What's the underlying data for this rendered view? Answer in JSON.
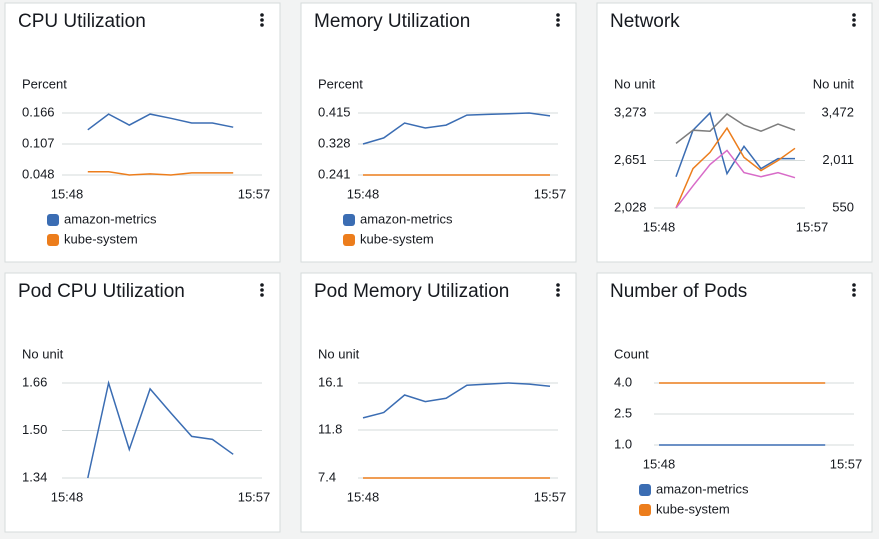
{
  "chart_data": [
    {
      "type": "line",
      "title": "CPU Utilization",
      "ylabel": "Percent",
      "categories": [
        "15:48",
        null,
        null,
        null,
        null,
        null,
        null,
        null,
        null,
        "15:57"
      ],
      "series": [
        {
          "name": "amazon-metrics",
          "color": "#3b6db3",
          "values": [
            null,
            0.134,
            0.164,
            0.143,
            0.164,
            0.156,
            0.147,
            0.147,
            0.139,
            null
          ]
        },
        {
          "name": "kube-system",
          "color": "#ec7d1c",
          "values": [
            null,
            0.054,
            0.054,
            0.048,
            0.05,
            0.048,
            0.052,
            0.052,
            0.052,
            null
          ]
        }
      ],
      "ylim": [
        0.048,
        0.166
      ],
      "yticks": [
        0.048,
        0.107,
        0.166
      ],
      "grid": true,
      "legend": true
    },
    {
      "type": "line",
      "title": "Memory Utilization",
      "ylabel": "Percent",
      "categories": [
        "15:48",
        null,
        null,
        null,
        null,
        null,
        null,
        null,
        null,
        "15:57"
      ],
      "series": [
        {
          "name": "amazon-metrics",
          "color": "#3b6db3",
          "values": [
            0.328,
            0.345,
            0.387,
            0.373,
            0.381,
            0.409,
            0.411,
            0.413,
            0.415,
            0.407
          ]
        },
        {
          "name": "kube-system",
          "color": "#ec7d1c",
          "values": [
            0.241,
            0.241,
            0.241,
            0.241,
            0.241,
            0.241,
            0.241,
            0.241,
            0.241,
            0.241
          ]
        }
      ],
      "ylim": [
        0.241,
        0.415
      ],
      "yticks": [
        0.241,
        0.328,
        0.415
      ],
      "grid": true,
      "legend": true
    },
    {
      "type": "line",
      "title": "Network",
      "ylabel": "No unit",
      "y2label": "No unit",
      "categories": [
        "15:48",
        null,
        null,
        null,
        null,
        null,
        null,
        null,
        null,
        "15:57"
      ],
      "series": [
        {
          "color": "#3b6db3",
          "values": [
            null,
            2438,
            3047,
            3273,
            2478,
            2836,
            2544,
            2676,
            2676,
            null
          ]
        },
        {
          "color": "#7d7d7d",
          "values": [
            null,
            2875,
            3047,
            3034,
            3260,
            3114,
            3034,
            3127,
            3047,
            null
          ]
        },
        {
          "color": "#ec7d1c",
          "axis": "y2",
          "values": [
            null,
            550,
            1763,
            2261,
            3007,
            2105,
            1701,
            2012,
            2385,
            null
          ]
        },
        {
          "color": "#d86bc8",
          "axis": "y2",
          "values": [
            null,
            550,
            1234,
            1887,
            2323,
            1639,
            1514,
            1639,
            1483,
            null
          ]
        }
      ],
      "ylim": [
        2028,
        3273
      ],
      "yticks": [
        {
          "value": 2028,
          "label": "2,028"
        },
        {
          "value": 2651,
          "label": "2,651"
        },
        {
          "value": 3273,
          "label": "3,273"
        }
      ],
      "y2lim": [
        550,
        3472
      ],
      "y2ticks": [
        550,
        {
          "value": 2011,
          "label": "2,011"
        },
        {
          "value": 3472,
          "label": "3,472"
        }
      ],
      "grid": true,
      "legend": false
    },
    {
      "type": "line",
      "title": "Pod CPU Utilization",
      "ylabel": "No unit",
      "categories": [
        "15:48",
        null,
        null,
        null,
        null,
        null,
        null,
        null,
        null,
        "15:57"
      ],
      "color": "#3b6db3",
      "values": [
        null,
        1.34,
        1.66,
        1.436,
        1.64,
        1.559,
        1.48,
        1.47,
        1.42,
        null
      ],
      "ylim": [
        1.34,
        1.66
      ],
      "yticks": [
        1.34,
        {
          "value": 1.5,
          "label": "1.50"
        },
        1.66
      ],
      "grid": true,
      "legend": false
    },
    {
      "type": "line",
      "title": "Pod Memory Utilization",
      "ylabel": "No unit",
      "categories": [
        "15:48",
        null,
        null,
        null,
        null,
        null,
        null,
        null,
        null,
        "15:57"
      ],
      "series": [
        {
          "color": "#3b6db3",
          "values": [
            12.9,
            13.4,
            15.0,
            14.4,
            14.7,
            15.9,
            16.0,
            16.1,
            16.0,
            15.8
          ]
        },
        {
          "color": "#ec7d1c",
          "values": [
            7.4,
            7.4,
            7.4,
            7.4,
            7.4,
            7.4,
            7.4,
            7.4,
            7.4,
            7.4
          ]
        }
      ],
      "ylim": [
        7.4,
        16.1
      ],
      "yticks": [
        7.4,
        11.8,
        16.1
      ],
      "grid": true,
      "legend": false
    },
    {
      "type": "line",
      "title": "Number of Pods",
      "ylabel": "Count",
      "categories": [
        "15:48",
        null,
        null,
        null,
        null,
        null,
        null,
        null,
        null,
        "15:57"
      ],
      "series": [
        {
          "name": "amazon-metrics",
          "color": "#3b6db3",
          "values": [
            1,
            1,
            1,
            1,
            1,
            1,
            1,
            1,
            1,
            null
          ]
        },
        {
          "name": "kube-system",
          "color": "#ec7d1c",
          "values": [
            4,
            4,
            4,
            4,
            4,
            4,
            4,
            4,
            4,
            null
          ]
        }
      ],
      "ylim": [
        1,
        4
      ],
      "yticks": [
        {
          "value": 1,
          "label": "1.0"
        },
        2.5,
        {
          "value": 4,
          "label": "4.0"
        }
      ],
      "grid": true,
      "legend": true
    }
  ]
}
